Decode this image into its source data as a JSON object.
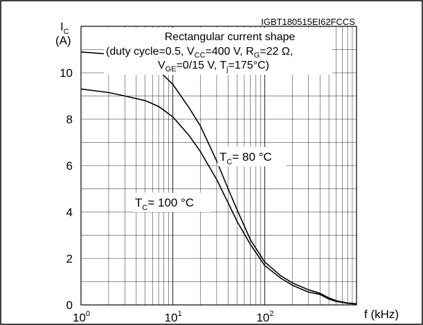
{
  "chart_data": {
    "type": "line",
    "ylabel_main": "I",
    "ylabel_sub": "C",
    "ylabel_unit": "(A)",
    "xlabel": "f (kHz)",
    "figure_id": "IGBT180515EI62FCCS",
    "x_scale": "log",
    "xlim": [
      1,
      1000
    ],
    "ylim": [
      0,
      12
    ],
    "x_ticks": [
      1,
      10,
      100
    ],
    "y_ticks": [
      0,
      2,
      4,
      6,
      8,
      10
    ],
    "grid": true,
    "annotation": {
      "line1": "Rectangular current shape",
      "line2": "(duty cycle=0.5, V",
      "line2_sub1": "CC",
      "line2_mid": "=400 V, R",
      "line2_sub2": "G",
      "line2_end": "=22 Ω,",
      "line3": "V",
      "line3_sub1": "GE",
      "line3_mid": "=0/15 V, T",
      "line3_sub2": "j",
      "line3_end": "=175°C)"
    },
    "series": [
      {
        "name": "T_C= 80 °C",
        "label_main": "T",
        "label_sub": "C",
        "label_rest": "= 80 °C",
        "x": [
          1,
          2,
          3,
          5,
          7,
          10,
          15,
          20,
          30,
          40,
          50,
          70,
          100,
          150,
          200,
          300,
          400,
          500,
          600,
          800,
          1000
        ],
        "y": [
          10.9,
          10.8,
          10.7,
          10.4,
          10.1,
          9.5,
          8.5,
          7.7,
          6.2,
          5.0,
          4.1,
          2.8,
          1.85,
          1.25,
          0.95,
          0.65,
          0.5,
          0.3,
          0.18,
          0.08,
          0.05
        ]
      },
      {
        "name": "T_C= 100 °C",
        "label_main": "T",
        "label_sub": "C",
        "label_rest": "= 100 °C",
        "x": [
          1,
          2,
          3,
          5,
          7,
          10,
          15,
          20,
          30,
          40,
          50,
          70,
          100,
          150,
          200,
          300,
          400,
          500,
          600,
          800,
          1000
        ],
        "y": [
          9.3,
          9.15,
          9.0,
          8.8,
          8.55,
          8.1,
          7.3,
          6.6,
          5.4,
          4.4,
          3.6,
          2.6,
          1.7,
          1.15,
          0.85,
          0.55,
          0.45,
          0.25,
          0.15,
          0.07,
          0.04
        ]
      }
    ]
  }
}
